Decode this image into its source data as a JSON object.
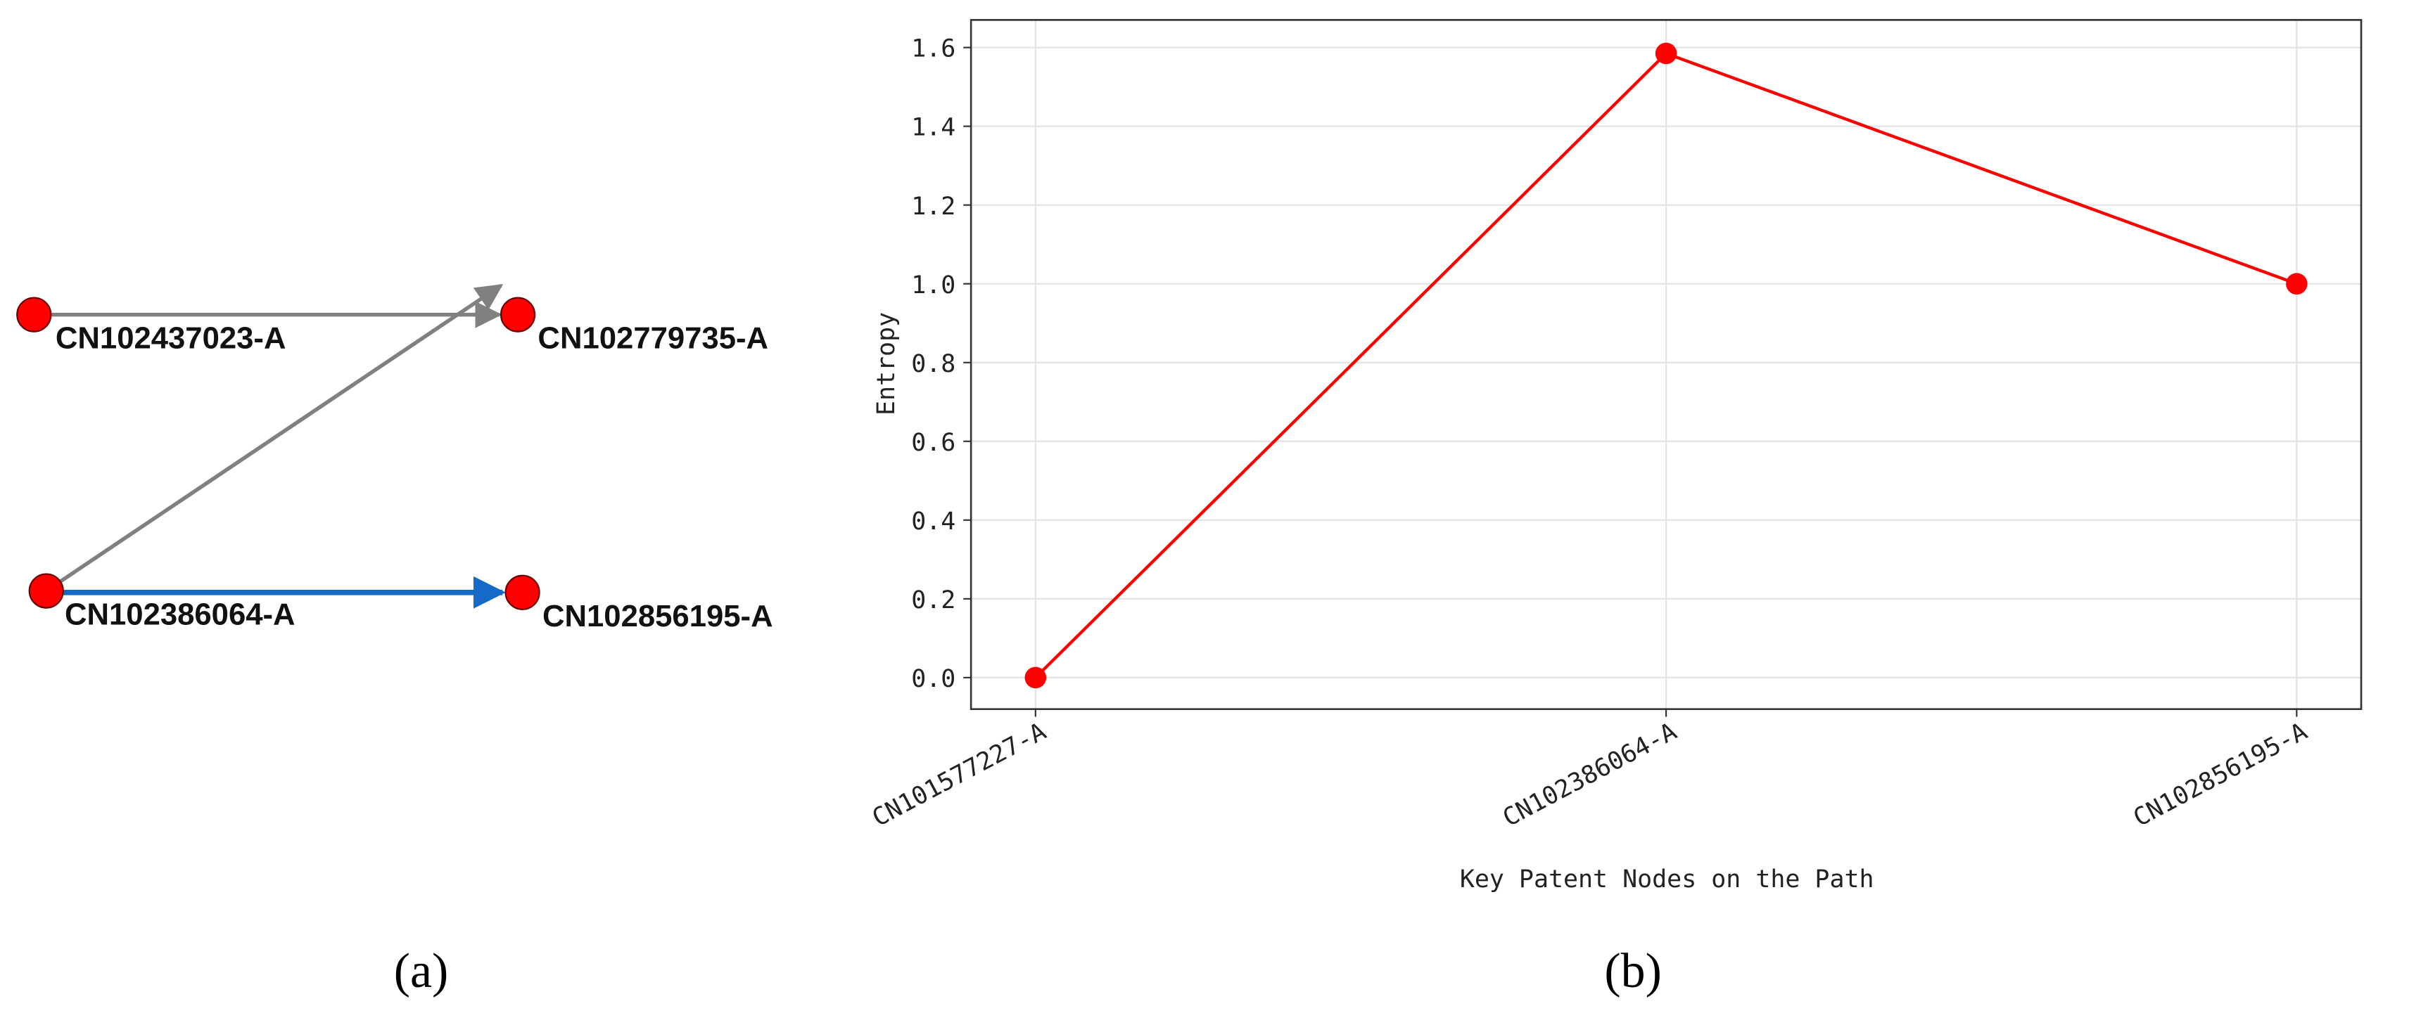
{
  "diagram": {
    "nodes": [
      {
        "label": "CN102437023-A"
      },
      {
        "label": "CN102779735-A"
      },
      {
        "label": "CN102386064-A"
      },
      {
        "label": "CN102856195-A"
      }
    ]
  },
  "panel_labels": [
    "(a)",
    "(b)"
  ],
  "chart_data": {
    "type": "line",
    "x_label": "Key Patent Nodes on the Path",
    "y_label": "Entropy",
    "categories": [
      "CN101577227-A",
      "CN102386064-A",
      "CN102856195-A"
    ],
    "values": [
      0,
      1.585,
      1.0
    ],
    "color": "#ff0000",
    "ylim": [
      -0.08,
      1.67
    ],
    "yticks": [
      {
        "value": 0,
        "label": "0.0"
      },
      0.2,
      0.4,
      0.6,
      0.8,
      {
        "value": 1,
        "label": "1.0"
      },
      1.2,
      1.4,
      1.6
    ],
    "grid": true
  }
}
